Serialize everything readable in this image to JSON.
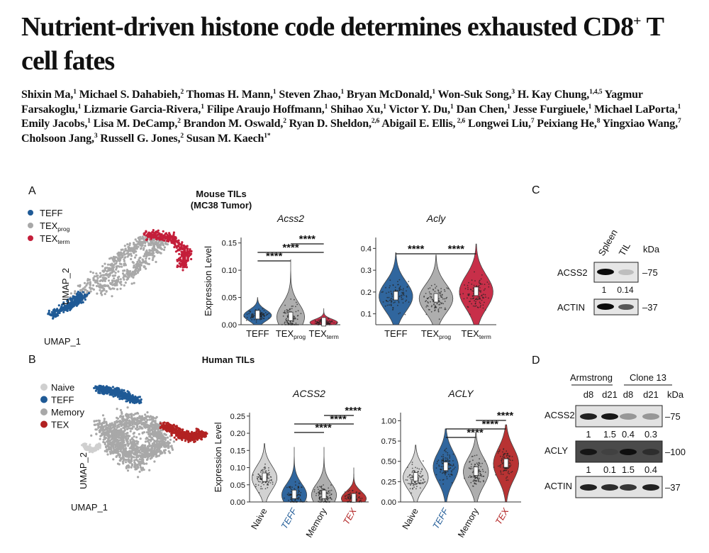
{
  "title": {
    "main": "Nutrient-driven histone code determines exhausted CD8",
    "sup": "+",
    "tail": " T cell fates"
  },
  "authors": [
    {
      "name": "Shixin Ma,",
      "aff": "1"
    },
    {
      "name": "Michael S. Dahabieh,",
      "aff": "2"
    },
    {
      "name": "Thomas H. Mann,",
      "aff": "1"
    },
    {
      "name": "Steven Zhao,",
      "aff": "1"
    },
    {
      "name": "Bryan McDonald,",
      "aff": "1"
    },
    {
      "name": "Won-Suk Song,",
      "aff": "3"
    },
    {
      "name": "H. Kay Chung,",
      "aff": "1,4,5"
    },
    {
      "name": "Yagmur Farsakoglu,",
      "aff": "1"
    },
    {
      "name": "Lizmarie Garcia-Rivera,",
      "aff": "1"
    },
    {
      "name": "Filipe Araujo Hoffmann,",
      "aff": "1"
    },
    {
      "name": "Shihao Xu,",
      "aff": "1"
    },
    {
      "name": "Victor Y. Du,",
      "aff": "1"
    },
    {
      "name": "Dan Chen,",
      "aff": "1"
    },
    {
      "name": "Jesse Furgiuele,",
      "aff": "1"
    },
    {
      "name": "Michael LaPorta,",
      "aff": "1"
    },
    {
      "name": "Emily Jacobs,",
      "aff": "1"
    },
    {
      "name": "Lisa M. DeCamp,",
      "aff": "2"
    },
    {
      "name": "Brandon M. Oswald,",
      "aff": "2"
    },
    {
      "name": "Ryan D. Sheldon,",
      "aff": "2,6"
    },
    {
      "name": "Abigail E. Ellis,",
      "aff": " 2,6"
    },
    {
      "name": "Longwei Liu,",
      "aff": "7"
    },
    {
      "name": "Peixiang He,",
      "aff": "8"
    },
    {
      "name": "Yingxiao Wang,",
      "aff": "7"
    },
    {
      "name": "Cholsoon Jang,",
      "aff": "3"
    },
    {
      "name": "Russell G. Jones,",
      "aff": "2"
    },
    {
      "name": "Susan M. Kaech",
      "aff": "1*"
    }
  ],
  "colors": {
    "teff": "#1f5a96",
    "texprog": "#a8a8a8",
    "texterm": "#c41e3a",
    "naive": "#cfcfcf",
    "memory": "#a8a8a8",
    "tex": "#b22222"
  },
  "panelA": {
    "label": "A",
    "heading_line1": "Mouse TILs",
    "heading_line2": "(MC38 Tumor)",
    "legend": [
      {
        "key": "teff",
        "text": "TEFF"
      },
      {
        "key": "texprog",
        "text": "TEX",
        "sub": "prog"
      },
      {
        "key": "texterm",
        "text": "TEX",
        "sub": "term"
      }
    ],
    "umap_x": "UMAP_1",
    "umap_y": "UMAP_2"
  },
  "panelB": {
    "label": "B",
    "heading": "Human TILs",
    "legend": [
      {
        "key": "naive",
        "text": "Naive"
      },
      {
        "key": "teff",
        "text": "TEFF"
      },
      {
        "key": "memory",
        "text": "Memory"
      },
      {
        "key": "tex",
        "text": "TEX"
      }
    ],
    "umap_x": "UMAP_1",
    "umap_y": "UMAP_2"
  },
  "chart_data": [
    {
      "type": "violin",
      "title": "Acss2",
      "ylabel": "Expression Level",
      "ylim": [
        0,
        0.16
      ],
      "yticks": [
        0.0,
        0.05,
        0.1,
        0.15
      ],
      "ytick_labels": [
        "0.00",
        "0.05",
        "0.10",
        "0.15"
      ],
      "categories": [
        {
          "text": "TEFF",
          "sub": "",
          "color": "#1f5a96"
        },
        {
          "text": "TEX",
          "sub": "prog",
          "color": "#a8a8a8"
        },
        {
          "text": "TEX",
          "sub": "term",
          "color": "#c41e3a"
        }
      ],
      "medians": [
        0.017,
        0.014,
        0.004
      ],
      "spread_max": [
        0.05,
        0.12,
        0.03
      ],
      "significance": [
        {
          "from": 0,
          "to": 1,
          "label": "****"
        },
        {
          "from": 0,
          "to": 2,
          "label": "****"
        },
        {
          "from": 1,
          "to": 2,
          "label": "****"
        }
      ]
    },
    {
      "type": "violin",
      "title": "Acly",
      "ylabel": "",
      "ylim": [
        0.05,
        0.45
      ],
      "yticks": [
        0.1,
        0.2,
        0.3,
        0.4
      ],
      "ytick_labels": [
        "0.1",
        "0.2",
        "0.3",
        "0.4"
      ],
      "categories": [
        {
          "text": "TEFF",
          "sub": "",
          "color": "#1f5a96"
        },
        {
          "text": "TEX",
          "sub": "prog",
          "color": "#a8a8a8"
        },
        {
          "text": "TEX",
          "sub": "term",
          "color": "#c41e3a"
        }
      ],
      "medians": [
        0.18,
        0.17,
        0.2
      ],
      "spread_max": [
        0.38,
        0.37,
        0.42
      ],
      "significance": [
        {
          "from": 0,
          "to": 1,
          "label": "****"
        },
        {
          "from": 1,
          "to": 2,
          "label": "****"
        }
      ]
    },
    {
      "type": "violin",
      "title": "ACSS2",
      "ylabel": "Expression Level",
      "ylim": [
        0,
        0.26
      ],
      "yticks": [
        0.0,
        0.05,
        0.1,
        0.15,
        0.2,
        0.25
      ],
      "ytick_labels": [
        "0.00",
        "0.05",
        "0.10",
        "0.15",
        "0.20",
        "0.25"
      ],
      "categories": [
        {
          "text": "Naive",
          "sub": "",
          "color": "#cfcfcf",
          "label_color": "#111111"
        },
        {
          "text": "TEFF",
          "sub": "",
          "color": "#1f5a96",
          "label_color": "#1f5a96"
        },
        {
          "text": "Memory",
          "sub": "",
          "color": "#a8a8a8",
          "label_color": "#111111"
        },
        {
          "text": "TEX",
          "sub": "",
          "color": "#b22222",
          "label_color": "#b22222"
        }
      ],
      "medians": [
        0.07,
        0.02,
        0.02,
        0.01
      ],
      "spread_max": [
        0.17,
        0.16,
        0.16,
        0.1
      ],
      "significance": [
        {
          "from": 1,
          "to": 2,
          "label": "****"
        },
        {
          "from": 1,
          "to": 3,
          "label": "****"
        },
        {
          "from": 2,
          "to": 3,
          "label": "****"
        }
      ]
    },
    {
      "type": "violin",
      "title": "ACLY",
      "ylabel": "",
      "ylim": [
        0,
        1.1
      ],
      "yticks": [
        0.0,
        0.25,
        0.5,
        0.75,
        1.0
      ],
      "ytick_labels": [
        "0.00",
        "0.25",
        "0.50",
        "0.75",
        "1.00"
      ],
      "categories": [
        {
          "text": "Naive",
          "sub": "",
          "color": "#cfcfcf",
          "label_color": "#111111"
        },
        {
          "text": "TEFF",
          "sub": "",
          "color": "#1f5a96",
          "label_color": "#1f5a96"
        },
        {
          "text": "Memory",
          "sub": "",
          "color": "#a8a8a8",
          "label_color": "#111111"
        },
        {
          "text": "TEX",
          "sub": "",
          "color": "#b22222",
          "label_color": "#b22222"
        }
      ],
      "medians": [
        0.3,
        0.43,
        0.37,
        0.47
      ],
      "spread_max": [
        0.7,
        0.9,
        0.85,
        0.95
      ],
      "significance": [
        {
          "from": 1,
          "to": 2,
          "label": "****"
        },
        {
          "from": 1,
          "to": 3,
          "label": "****"
        },
        {
          "from": 2,
          "to": 3,
          "label": "****"
        }
      ]
    }
  ],
  "panelC": {
    "label": "C",
    "lanes": [
      "Spleen",
      "TIL"
    ],
    "kda_label": "kDa",
    "rows": [
      {
        "name": "ACSS2",
        "marker": "75",
        "quant": [
          "1",
          "0.14"
        ]
      },
      {
        "name": "ACTIN",
        "marker": "37",
        "quant": []
      }
    ]
  },
  "panelD": {
    "label": "D",
    "groups": [
      "Armstrong",
      "Clone 13"
    ],
    "lanes": [
      "d8",
      "d21",
      "d8",
      "d21"
    ],
    "kda_label": "kDa",
    "rows": [
      {
        "name": "ACSS2",
        "marker": "75",
        "quant": [
          "1",
          "1.5",
          "0.4",
          "0.3"
        ]
      },
      {
        "name": "ACLY",
        "marker": "100",
        "quant": [
          "1",
          "0.1",
          "1.5",
          "0.4"
        ]
      },
      {
        "name": "ACTIN",
        "marker": "37",
        "quant": []
      }
    ]
  }
}
